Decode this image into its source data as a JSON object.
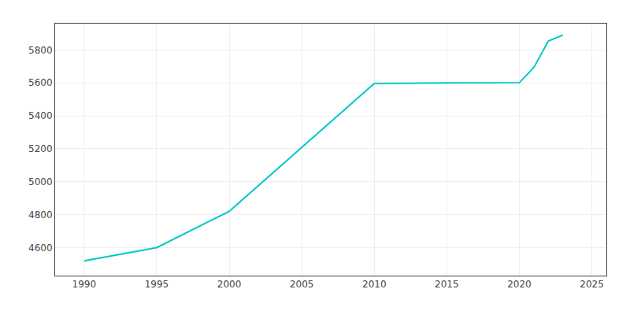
{
  "chart_data": {
    "type": "line",
    "x": [
      1990,
      1995,
      2000,
      2010,
      2015,
      2020,
      2021,
      2022,
      2023
    ],
    "values": [
      4520,
      4600,
      4820,
      5597,
      5600,
      5601,
      5694,
      5855,
      5890
    ],
    "color": "#00C8C8",
    "xlim": [
      1988,
      2026
    ],
    "ylim": [
      4430,
      5960
    ],
    "xticks": [
      1990,
      1995,
      2000,
      2005,
      2010,
      2015,
      2020,
      2025
    ],
    "yticks": [
      4600,
      4800,
      5000,
      5200,
      5400,
      5600,
      5800
    ],
    "grid": true
  }
}
